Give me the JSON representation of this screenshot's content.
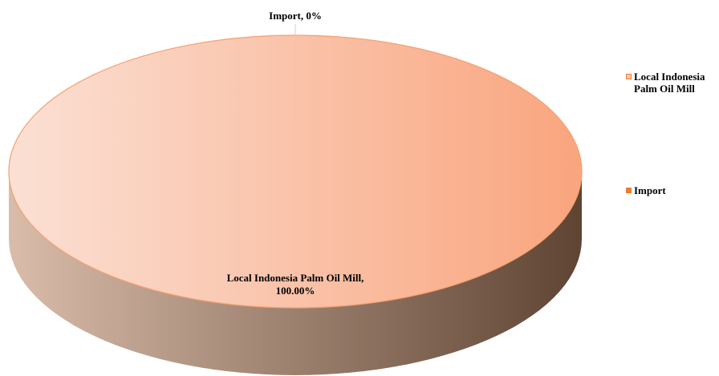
{
  "colors": {
    "local_top_light": "#fbe0d4",
    "local_top_dark": "#f9a57e",
    "local_side_light": "#d9bcaa",
    "local_side_dark": "#5f4433",
    "local_edge": "#f5a070",
    "import": "#ed7d31",
    "import_leader": "#f2c4a8"
  },
  "chart_data": {
    "type": "pie",
    "style": "3d",
    "title": "",
    "categories": [
      "Local Indonesia Palm Oil Mill",
      "Import"
    ],
    "values": [
      100.0,
      0.0
    ],
    "data_labels": [
      {
        "category": "Local Indonesia Palm Oil Mill",
        "text": "Local Indonesia Palm Oil Mill,",
        "value_text": "100.00%"
      },
      {
        "category": "Import",
        "text": "Import, 0%"
      }
    ],
    "legend": {
      "position": "right",
      "entries": [
        {
          "label_line1": "Local Indonesia",
          "label_line2": "Palm Oil Mill",
          "color": "#f8cbad",
          "border": "#ed7d31"
        },
        {
          "label_line1": "Import",
          "label_line2": "",
          "color": "#ed7d31",
          "border": "#ed7d31"
        }
      ]
    }
  }
}
